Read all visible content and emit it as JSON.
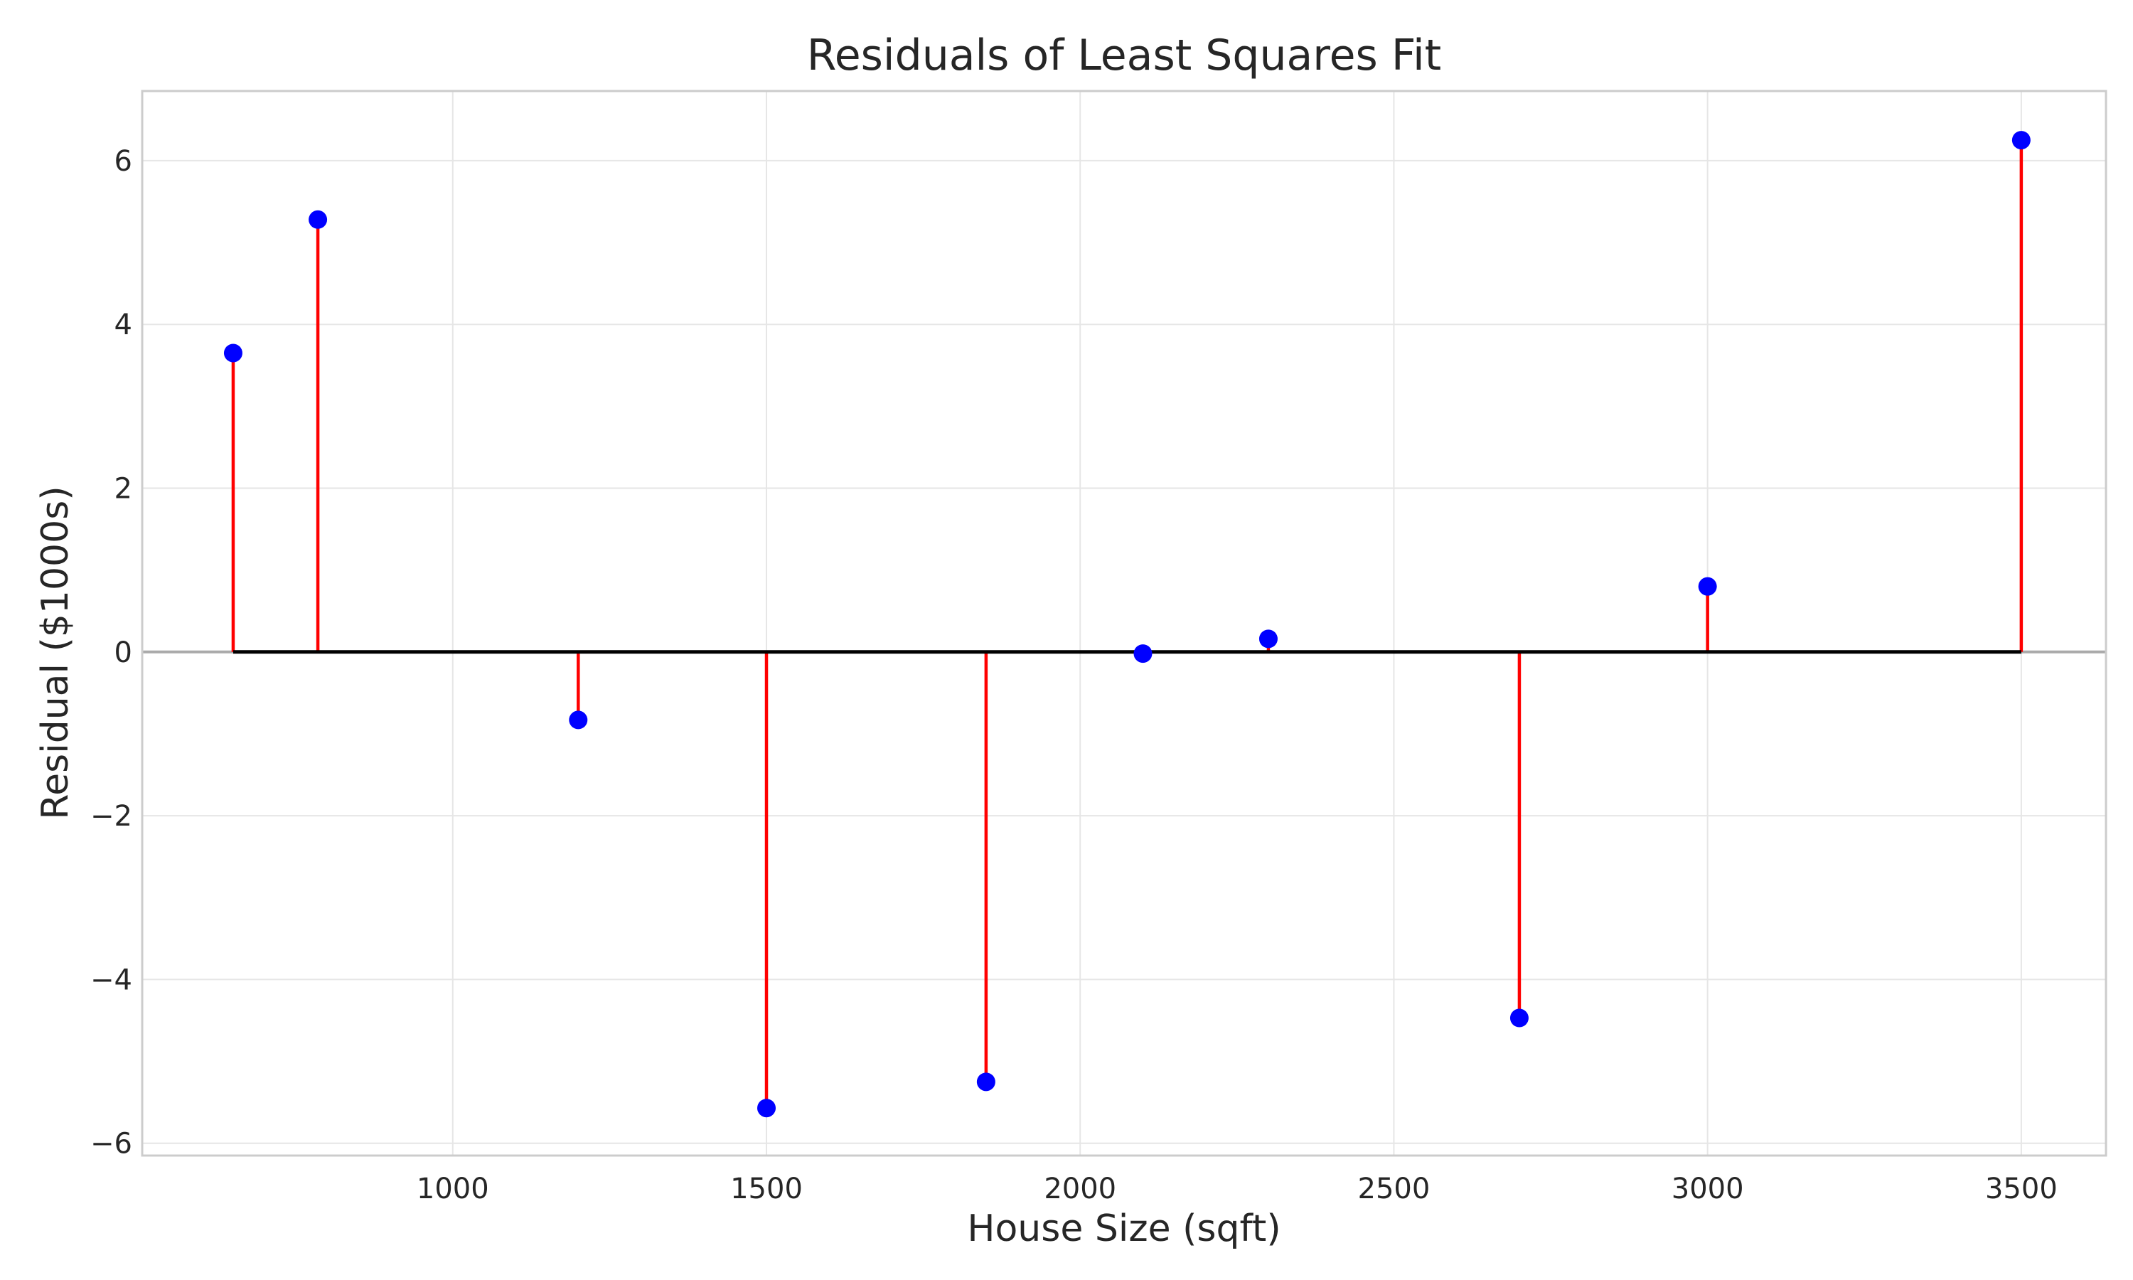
{
  "chart_data": {
    "type": "scatter",
    "subtype": "residual-stem",
    "title": "Residuals of Least Squares Fit",
    "xlabel": "House Size (sqft)",
    "ylabel": "Residual ($1000s)",
    "xlim": [
      505,
      3635
    ],
    "ylim": [
      -6.15,
      6.85
    ],
    "xticks": [
      1000,
      1500,
      2000,
      2500,
      3000,
      3500
    ],
    "yticks": [
      -6,
      -4,
      -2,
      0,
      2,
      4,
      6
    ],
    "ytick_labels": [
      "−6",
      "−4",
      "−2",
      "0",
      "2",
      "4",
      "6"
    ],
    "grid": true,
    "baseline": 0,
    "colors": {
      "point": "#0000ff",
      "stem": "#ff0000",
      "baseline": "#000000",
      "zero_line": "#aaaaaa",
      "grid": "#e6e6e6",
      "frame": "#cccccc"
    },
    "points": [
      {
        "x": 650,
        "y": 3.65
      },
      {
        "x": 785,
        "y": 5.28
      },
      {
        "x": 1200,
        "y": -0.83
      },
      {
        "x": 1500,
        "y": -5.57
      },
      {
        "x": 1850,
        "y": -5.25
      },
      {
        "x": 2100,
        "y": -0.02
      },
      {
        "x": 2300,
        "y": 0.16
      },
      {
        "x": 2700,
        "y": -4.47
      },
      {
        "x": 3000,
        "y": 0.8
      },
      {
        "x": 3500,
        "y": 6.25
      }
    ]
  }
}
